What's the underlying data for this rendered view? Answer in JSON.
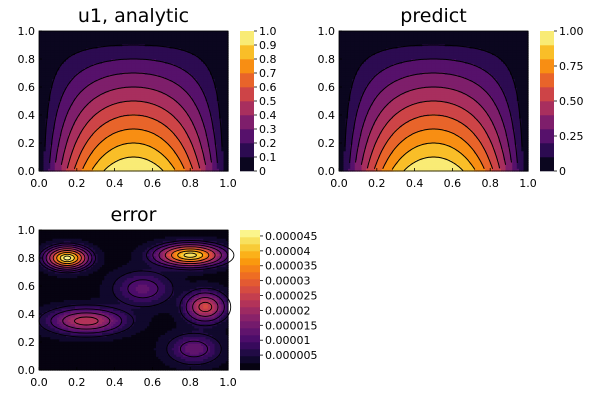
{
  "chart_data": [
    {
      "type": "heatmap",
      "subtype": "filled-contour",
      "title": "u1, analytic",
      "xlim": [
        0,
        1
      ],
      "ylim": [
        0,
        1
      ],
      "xticks": [
        "0.0",
        "0.2",
        "0.4",
        "0.6",
        "0.8",
        "1.0"
      ],
      "yticks": [
        "0.0",
        "0.2",
        "0.4",
        "0.6",
        "0.8",
        "1.0"
      ],
      "field": "1 - (2x-1)^2 - y (parabola in x, linear decay in y)",
      "levels": [
        0,
        0.1,
        0.2,
        0.3,
        0.4,
        0.5,
        0.6,
        0.7,
        0.8,
        0.9,
        1.0
      ],
      "colorbar": {
        "min": 0,
        "max": 1.0,
        "ticks": [
          "0",
          "0.1",
          "0.2",
          "0.3",
          "0.4",
          "0.5",
          "0.6",
          "0.7",
          "0.8",
          "0.9",
          "1.0"
        ]
      },
      "colormap": "inferno",
      "grid": false
    },
    {
      "type": "heatmap",
      "subtype": "filled-contour",
      "title": "predict",
      "xlim": [
        0,
        1
      ],
      "ylim": [
        0,
        1
      ],
      "xticks": [
        "0.0",
        "0.2",
        "0.4",
        "0.6",
        "0.8",
        "1.0"
      ],
      "yticks": [
        "0.0",
        "0.2",
        "0.4",
        "0.6",
        "0.8",
        "1.0"
      ],
      "levels": [
        0,
        0.1,
        0.2,
        0.3,
        0.4,
        0.5,
        0.6,
        0.7,
        0.8,
        0.9,
        1.0
      ],
      "colorbar": {
        "min": 0,
        "max": 1.0,
        "ticks": [
          "0",
          "0.25",
          "0.50",
          "0.75",
          "1.00"
        ]
      },
      "colormap": "inferno",
      "grid": false
    },
    {
      "type": "heatmap",
      "subtype": "filled-contour",
      "title": "error",
      "xlim": [
        0,
        1
      ],
      "ylim": [
        0,
        1
      ],
      "xticks": [
        "0.0",
        "0.2",
        "0.4",
        "0.6",
        "0.8",
        "1.0"
      ],
      "yticks": [
        "0.0",
        "0.2",
        "0.4",
        "0.6",
        "0.8",
        "1.0"
      ],
      "hotspots": [
        {
          "x": 0.15,
          "y": 0.8,
          "value": 4.5e-05
        },
        {
          "x": 0.8,
          "y": 0.82,
          "value": 4.3e-05
        },
        {
          "x": 0.25,
          "y": 0.35,
          "value": 2.2e-05
        },
        {
          "x": 0.88,
          "y": 0.45,
          "value": 2.5e-05
        },
        {
          "x": 0.82,
          "y": 0.15,
          "value": 1.2e-05
        },
        {
          "x": 0.55,
          "y": 0.58,
          "value": 1.1e-05
        }
      ],
      "colorbar": {
        "min": 0,
        "max": 4.7e-05,
        "ticks": [
          "0.000005",
          "0.00001",
          "0.000015",
          "0.00002",
          "0.000025",
          "0.00003",
          "0.000035",
          "0.00004",
          "0.000045"
        ]
      },
      "colormap": "inferno",
      "grid": false
    }
  ]
}
